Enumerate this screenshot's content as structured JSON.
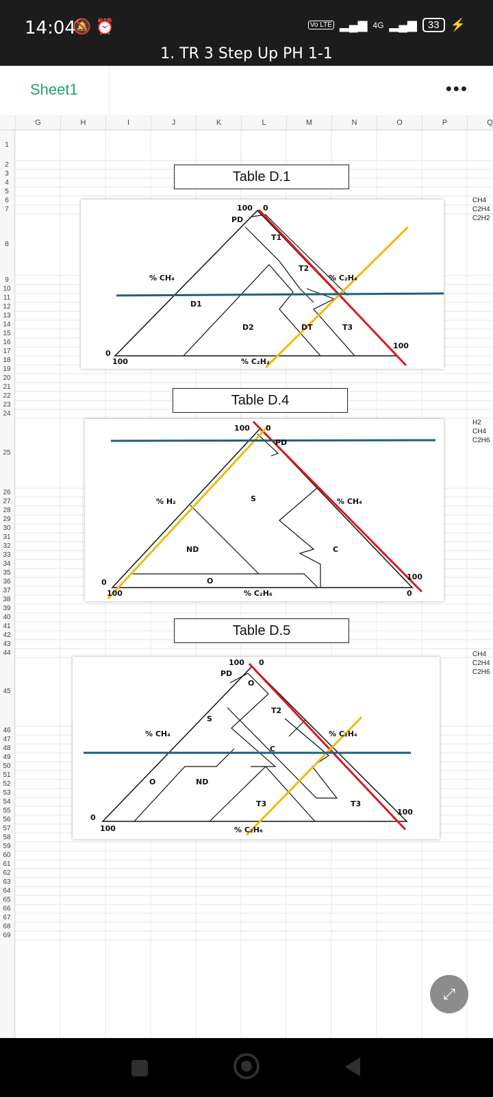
{
  "status": {
    "time": "14:04",
    "network": "4G",
    "volte": "Vo LTE",
    "battery": "33"
  },
  "document": {
    "title": "1. TR 3 Step Up PH 1-1"
  },
  "sheet": {
    "tab_label": "Sheet1",
    "more_label": "•••"
  },
  "columns": [
    "G",
    "H",
    "I",
    "J",
    "K",
    "L",
    "M",
    "N",
    "O",
    "P",
    "Q"
  ],
  "rows": [
    "1",
    "2",
    "3",
    "4",
    "5",
    "6",
    "7",
    "8",
    "9",
    "10",
    "11",
    "12",
    "13",
    "14",
    "15",
    "16",
    "17",
    "18",
    "19",
    "20",
    "21",
    "22",
    "23",
    "24",
    "25",
    "26",
    "27",
    "28",
    "29",
    "30",
    "31",
    "32",
    "33",
    "34",
    "35",
    "36",
    "37",
    "38",
    "39",
    "40",
    "41",
    "42",
    "43",
    "44",
    "45",
    "46",
    "47",
    "48",
    "49",
    "50",
    "51",
    "52",
    "53",
    "54",
    "55",
    "56",
    "57",
    "58",
    "59",
    "60",
    "61",
    "62",
    "63",
    "64",
    "65",
    "66",
    "67",
    "68",
    "69"
  ],
  "tables": [
    {
      "title": "Table D.1",
      "side_labels": [
        "CH4",
        "C2H4",
        "C2H2"
      ],
      "axis_left": "% CH₄",
      "axis_right": "% C₂H₄",
      "axis_bottom": "% C₂H₂",
      "apex_left": "100",
      "apex_right": "0",
      "corner_left_top": "0",
      "corner_left_bottom": "100",
      "corner_right": "100",
      "zones": [
        "PD",
        "T1",
        "T2",
        "D1",
        "D2",
        "DT",
        "T3"
      ]
    },
    {
      "title": "Table D.4",
      "side_labels": [
        "H2",
        "CH4",
        "C2H6"
      ],
      "axis_left": "% H₂",
      "axis_right": "% CH₄",
      "axis_bottom": "% C₂H₆",
      "apex_left": "100",
      "apex_right": "0",
      "corner_left_top": "0",
      "corner_left_bottom": "100",
      "corner_right_top": "100",
      "corner_right_bottom": "0",
      "zones": [
        "PD",
        "S",
        "ND",
        "C",
        "O"
      ]
    },
    {
      "title": "Table D.5",
      "side_labels": [
        "CH4",
        "C2H4",
        "C2H6"
      ],
      "axis_left": "% CH₄",
      "axis_right": "% C₂H₄",
      "axis_bottom": "% C₂H₆",
      "apex_left": "100",
      "apex_right": "0",
      "corner_left_top": "0",
      "corner_left_bottom": "100",
      "corner_right": "100",
      "zones": [
        "PD",
        "O",
        "S",
        "T2",
        "C",
        "O",
        "ND",
        "T3",
        "T3"
      ]
    }
  ],
  "colors": {
    "red_line": "#d81b1b",
    "yellow_line": "#f0b90b",
    "blue_line": "#1e5f7f",
    "accent": "#26a269"
  },
  "fab_icon": "expand-icon"
}
